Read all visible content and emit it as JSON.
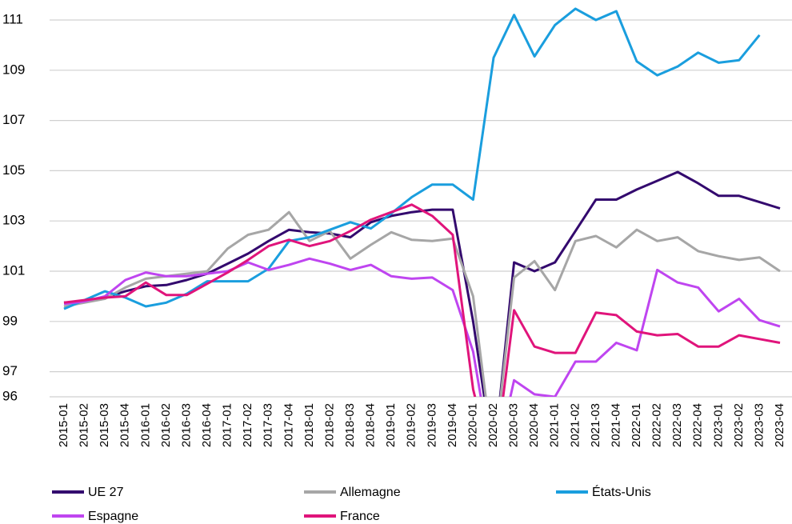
{
  "chart_data": {
    "type": "line",
    "categories": [
      "2015-01",
      "2015-02",
      "2015-03",
      "2015-04",
      "2016-01",
      "2016-02",
      "2016-03",
      "2016-04",
      "2017-01",
      "2017-02",
      "2017-03",
      "2017-04",
      "2018-01",
      "2018-02",
      "2018-03",
      "2018-04",
      "2019-01",
      "2019-02",
      "2019-03",
      "2019-04",
      "2020-01",
      "2020-02",
      "2020-03",
      "2020-04",
      "2021-01",
      "2021-02",
      "2021-03",
      "2021-04",
      "2022-01",
      "2022-02",
      "2022-03",
      "2022-04",
      "2023-01",
      "2023-02",
      "2023-03",
      "2023-04"
    ],
    "ylim": [
      96,
      111
    ],
    "yticks": [
      96,
      97,
      99,
      101,
      103,
      105,
      107,
      109,
      111
    ],
    "grid": true,
    "legend": "bottom",
    "series": [
      {
        "name": "UE 27",
        "color": "#33096e",
        "values": [
          99.75,
          99.8,
          99.95,
          100.2,
          100.4,
          100.45,
          100.65,
          100.9,
          101.3,
          101.7,
          102.2,
          102.65,
          102.55,
          102.5,
          102.35,
          102.95,
          103.2,
          103.35,
          103.45,
          103.45,
          99.0,
          93.5,
          101.35,
          101.0,
          101.35,
          102.6,
          103.85,
          103.85,
          104.25,
          104.6,
          104.95,
          104.5,
          104.0,
          104.0,
          103.75,
          103.5
        ]
      },
      {
        "name": "Allemagne",
        "color": "#a6a6a6",
        "values": [
          99.6,
          99.75,
          99.9,
          100.35,
          100.7,
          100.8,
          100.9,
          101.0,
          101.9,
          102.45,
          102.65,
          103.35,
          102.2,
          102.6,
          101.5,
          102.05,
          102.55,
          102.25,
          102.2,
          102.3,
          100.0,
          93.5,
          100.75,
          101.4,
          100.25,
          102.2,
          102.4,
          101.95,
          102.65,
          102.2,
          102.35,
          101.8,
          101.6,
          101.45,
          101.55,
          101.0
        ]
      },
      {
        "name": "États-Unis",
        "color": "#1a9ede",
        "values": [
          99.5,
          99.85,
          100.2,
          99.95,
          99.6,
          99.75,
          100.1,
          100.6,
          100.6,
          100.6,
          101.1,
          102.2,
          102.35,
          102.65,
          102.95,
          102.7,
          103.3,
          103.95,
          104.45,
          104.45,
          103.85,
          109.5,
          111.2,
          109.55,
          110.8,
          111.45,
          111.0,
          111.35,
          109.35,
          108.8,
          109.15,
          109.7,
          109.3,
          109.4,
          110.4,
          null
        ]
      },
      {
        "name": "Espagne",
        "color": "#bf45f0",
        "values": [
          99.7,
          99.8,
          100.0,
          100.65,
          100.95,
          100.8,
          100.8,
          100.9,
          101.0,
          101.35,
          101.05,
          101.25,
          101.5,
          101.3,
          101.05,
          101.25,
          100.8,
          100.7,
          100.75,
          100.25,
          97.8,
          93.0,
          96.66,
          96.1,
          96.0,
          97.4,
          97.4,
          98.15,
          97.85,
          101.05,
          100.55,
          100.35,
          99.4,
          99.9,
          99.05,
          98.8
        ]
      },
      {
        "name": "France",
        "color": "#e0147b",
        "values": [
          99.75,
          99.85,
          99.95,
          100.0,
          100.55,
          100.05,
          100.05,
          100.5,
          100.95,
          101.45,
          102.0,
          102.25,
          102.0,
          102.2,
          102.6,
          103.05,
          103.35,
          103.65,
          103.2,
          102.45,
          96.3,
          93.0,
          99.45,
          98.0,
          97.75,
          97.75,
          99.35,
          99.25,
          98.6,
          98.45,
          98.5,
          98.0,
          98.0,
          98.45,
          98.3,
          98.15
        ]
      }
    ]
  }
}
